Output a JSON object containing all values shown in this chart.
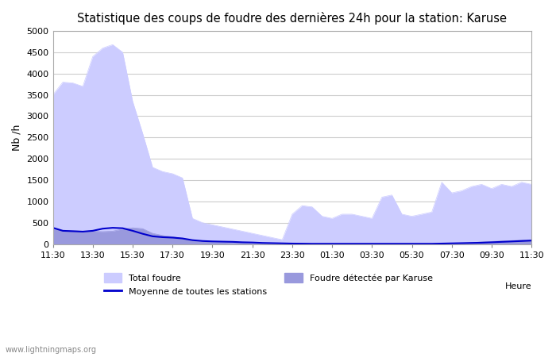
{
  "title": "Statistique des coups de foudre des dernières 24h pour la station: Karuse",
  "ylabel": "Nb /h",
  "xlabel": "Heure",
  "watermark": "www.lightningmaps.org",
  "ylim": [
    0,
    5000
  ],
  "yticks": [
    0,
    500,
    1000,
    1500,
    2000,
    2500,
    3000,
    3500,
    4000,
    4500,
    5000
  ],
  "xtick_labels": [
    "11:30",
    "13:30",
    "15:30",
    "17:30",
    "19:30",
    "21:30",
    "23:30",
    "01:30",
    "03:30",
    "05:30",
    "07:30",
    "09:30",
    "11:30"
  ],
  "color_total": "#ccccff",
  "color_karuse": "#9999dd",
  "color_moyenne": "#0000cc",
  "total_foudre": [
    3500,
    3800,
    3780,
    3700,
    4400,
    4600,
    4680,
    4500,
    3350,
    2600,
    1800,
    1700,
    1650,
    1550,
    600,
    500,
    450,
    400,
    350,
    300,
    250,
    200,
    150,
    100,
    700,
    900,
    870,
    650,
    600,
    700,
    700,
    650,
    600,
    1100,
    1150,
    700,
    650,
    700,
    750,
    1450,
    1200,
    1250,
    1350,
    1400,
    1300,
    1400,
    1350,
    1450,
    1400
  ],
  "karuse_foudre": [
    350,
    320,
    310,
    300,
    300,
    290,
    300,
    350,
    380,
    360,
    250,
    200,
    170,
    130,
    80,
    60,
    50,
    40,
    30,
    20,
    15,
    10,
    8,
    5,
    5,
    5,
    5,
    5,
    5,
    5,
    5,
    5,
    5,
    5,
    5,
    5,
    5,
    5,
    5,
    10,
    15,
    20,
    30,
    50,
    60,
    70,
    80,
    90,
    100
  ],
  "moyenne_foudre": [
    380,
    310,
    300,
    290,
    310,
    360,
    380,
    370,
    310,
    240,
    180,
    160,
    150,
    130,
    90,
    70,
    60,
    55,
    50,
    40,
    35,
    25,
    20,
    15,
    10,
    8,
    5,
    5,
    5,
    5,
    5,
    5,
    5,
    5,
    5,
    5,
    5,
    5,
    5,
    10,
    15,
    20,
    25,
    30,
    40,
    50,
    60,
    70,
    80
  ],
  "legend_total": "Total foudre",
  "legend_karuse": "Foudre détectée par Karuse",
  "legend_moyenne": "Moyenne de toutes les stations",
  "bg_color": "#ffffff",
  "plot_bg_color": "#ffffff",
  "grid_color": "#cccccc"
}
